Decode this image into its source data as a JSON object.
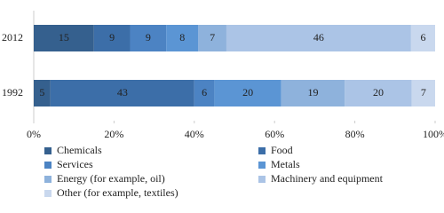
{
  "chart_data": {
    "type": "bar",
    "orientation": "horizontal",
    "stack": "percent",
    "categories": [
      "2012",
      "1992"
    ],
    "series": [
      {
        "name": "Chemicals",
        "color": "#35608e",
        "values": [
          15,
          5
        ]
      },
      {
        "name": "Food",
        "color": "#3c6ea8",
        "values": [
          9,
          43
        ]
      },
      {
        "name": "Services",
        "color": "#4c83c3",
        "values": [
          9,
          6
        ]
      },
      {
        "name": "Metals",
        "color": "#5b95d4",
        "values": [
          8,
          20
        ]
      },
      {
        "name": "Energy (for example, oil)",
        "color": "#8eb2dc",
        "values": [
          7,
          19
        ]
      },
      {
        "name": "Machinery and equipment",
        "color": "#abc4e6",
        "values": [
          46,
          20
        ]
      },
      {
        "name": "Other (for example, textiles)",
        "color": "#c9d8ee",
        "values": [
          6,
          7
        ]
      }
    ],
    "xlim": [
      0,
      100
    ],
    "xticks": [
      {
        "value": 0,
        "label": "0%"
      },
      {
        "value": 20,
        "label": "20%"
      },
      {
        "value": 40,
        "label": "40%"
      },
      {
        "value": 60,
        "label": "60%"
      },
      {
        "value": 80,
        "label": "80%"
      },
      {
        "value": 100,
        "label": "100%"
      }
    ],
    "legend": "bottom"
  }
}
